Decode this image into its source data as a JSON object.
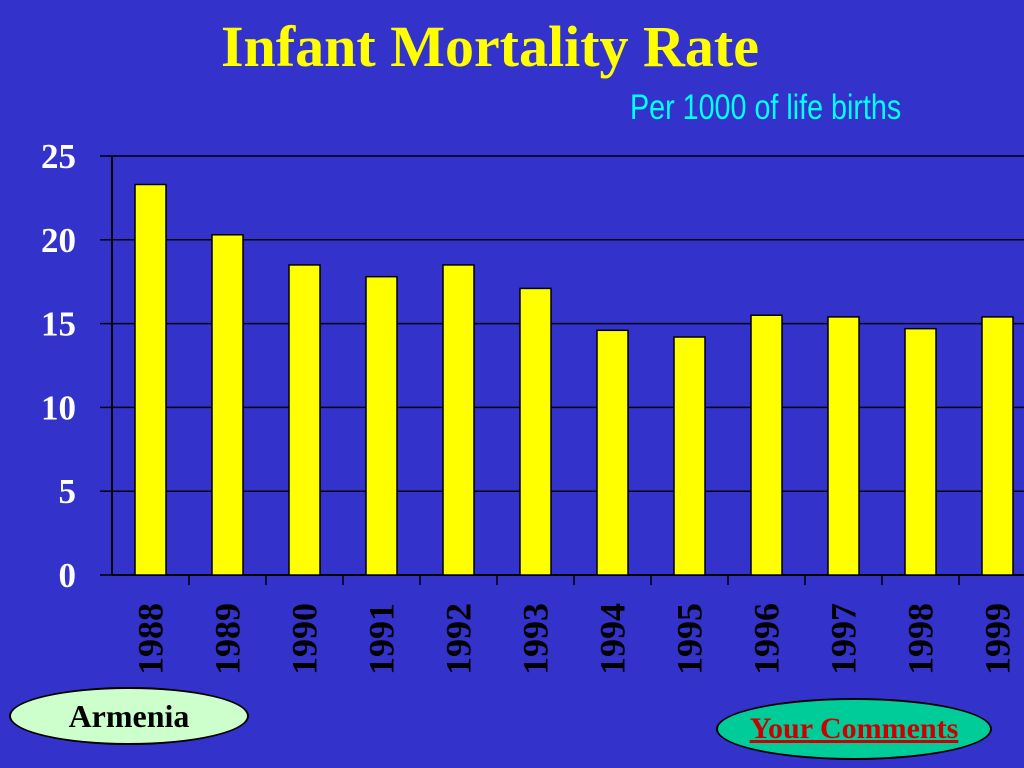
{
  "slide": {
    "region_label": "Armenia",
    "comments_label": "Your Comments"
  },
  "colors": {
    "background": "#3333cc",
    "bar": "#ffff00",
    "title": "#ffff00",
    "subtitle": "#00ffff"
  },
  "chart_data": {
    "type": "bar",
    "title": "Infant Mortality Rate",
    "subtitle": "Per 1000 of life births",
    "categories": [
      "1988",
      "1989",
      "1990",
      "1991",
      "1992",
      "1993",
      "1994",
      "1995",
      "1996",
      "1997",
      "1998",
      "1999"
    ],
    "values": [
      23.3,
      20.3,
      18.5,
      17.8,
      18.5,
      17.1,
      14.6,
      14.2,
      15.5,
      15.4,
      14.7,
      15.4
    ],
    "yticks": [
      0,
      5,
      10,
      15,
      20,
      25
    ],
    "ylim": [
      0,
      25
    ],
    "grid": true,
    "legend": "none"
  }
}
